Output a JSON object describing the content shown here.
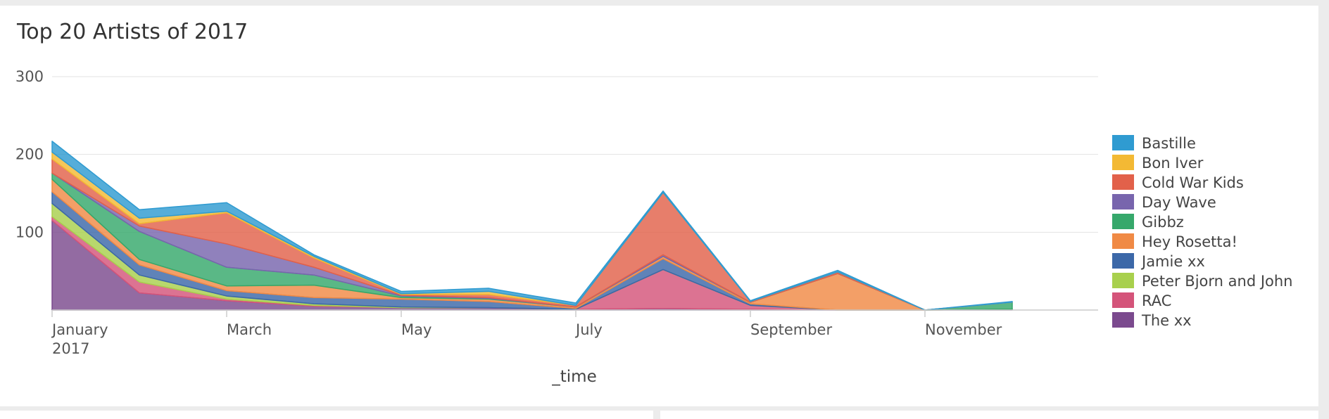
{
  "panel": {
    "title": "Top 20 Artists of 2017"
  },
  "chart_data": {
    "type": "area",
    "stacked": true,
    "title": "Top 20 Artists of 2017",
    "xlabel": "_time",
    "ylabel": "",
    "ylim": [
      0,
      300
    ],
    "yticks": [
      100,
      200,
      300
    ],
    "grid": true,
    "legend_position": "right",
    "x": [
      "2017-01",
      "2017-02",
      "2017-03",
      "2017-04",
      "2017-05",
      "2017-06",
      "2017-07",
      "2017-08",
      "2017-09",
      "2017-10",
      "2017-11",
      "2017-12"
    ],
    "x_tick_labels": [
      {
        "index": 0,
        "label": "January",
        "sublabel": "2017"
      },
      {
        "index": 2,
        "label": "March",
        "sublabel": ""
      },
      {
        "index": 4,
        "label": "May",
        "sublabel": ""
      },
      {
        "index": 6,
        "label": "July",
        "sublabel": ""
      },
      {
        "index": 8,
        "label": "September",
        "sublabel": ""
      },
      {
        "index": 10,
        "label": "November",
        "sublabel": ""
      }
    ],
    "series": [
      {
        "name": "The xx",
        "color": "#7b4a8e",
        "values": [
          115,
          22,
          12,
          5,
          3,
          3,
          1,
          2,
          1,
          0,
          0,
          1
        ]
      },
      {
        "name": "RAC",
        "color": "#d4547a",
        "values": [
          5,
          14,
          2,
          1,
          0,
          0,
          0,
          50,
          5,
          0,
          0,
          0
        ]
      },
      {
        "name": "Peter Bjorn and John",
        "color": "#a8d04d",
        "values": [
          17,
          9,
          4,
          2,
          1,
          0,
          0,
          0,
          0,
          0,
          0,
          0
        ]
      },
      {
        "name": "Jamie xx",
        "color": "#3c68a8",
        "values": [
          15,
          13,
          7,
          8,
          10,
          8,
          1,
          14,
          2,
          0,
          0,
          0
        ]
      },
      {
        "name": "Hey Rosetta!",
        "color": "#f08a45",
        "values": [
          16,
          7,
          6,
          16,
          2,
          3,
          2,
          3,
          2,
          47,
          0,
          0
        ]
      },
      {
        "name": "Gibbz",
        "color": "#36a86b",
        "values": [
          8,
          36,
          24,
          13,
          2,
          1,
          0,
          0,
          0,
          0,
          0,
          9
        ]
      },
      {
        "name": "Day Wave",
        "color": "#7865ad",
        "values": [
          0,
          7,
          30,
          10,
          1,
          1,
          0,
          2,
          0,
          0,
          0,
          0
        ]
      },
      {
        "name": "Cold War Kids",
        "color": "#e2614a",
        "values": [
          18,
          3,
          40,
          12,
          1,
          4,
          2,
          80,
          1,
          2,
          0,
          0
        ]
      },
      {
        "name": "Bon Iver",
        "color": "#f3b934",
        "values": [
          9,
          7,
          2,
          2,
          1,
          4,
          0,
          0,
          0,
          0,
          0,
          0
        ]
      },
      {
        "name": "Bastille",
        "color": "#2f9bd1",
        "values": [
          14,
          11,
          11,
          2,
          3,
          4,
          3,
          2,
          1,
          2,
          0,
          1
        ]
      }
    ],
    "legend": [
      "Bastille",
      "Bon Iver",
      "Cold War Kids",
      "Day Wave",
      "Gibbz",
      "Hey Rosetta!",
      "Jamie xx",
      "Peter Bjorn and John",
      "RAC",
      "The xx"
    ]
  }
}
